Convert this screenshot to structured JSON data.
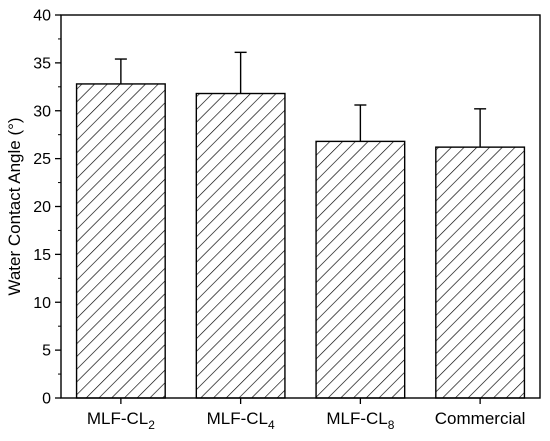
{
  "chart_data": {
    "type": "bar",
    "title": "",
    "xlabel": "",
    "ylabel": "Water Contact Angle (°)",
    "ylim": [
      0,
      40
    ],
    "yticks": [
      0,
      5,
      10,
      15,
      20,
      25,
      30,
      35,
      40
    ],
    "categories": [
      {
        "base": "MLF-CL",
        "sub": "2"
      },
      {
        "base": "MLF-CL",
        "sub": "4"
      },
      {
        "base": "MLF-CL",
        "sub": "8"
      },
      {
        "base": "Commercial",
        "sub": ""
      }
    ],
    "values": [
      32.8,
      31.8,
      26.8,
      26.2
    ],
    "error": [
      2.6,
      4.3,
      3.8,
      4.0
    ],
    "fill_pattern": "diagonal-hatch",
    "bar_edge_color": "#000000",
    "grid": false,
    "legend": "none"
  }
}
